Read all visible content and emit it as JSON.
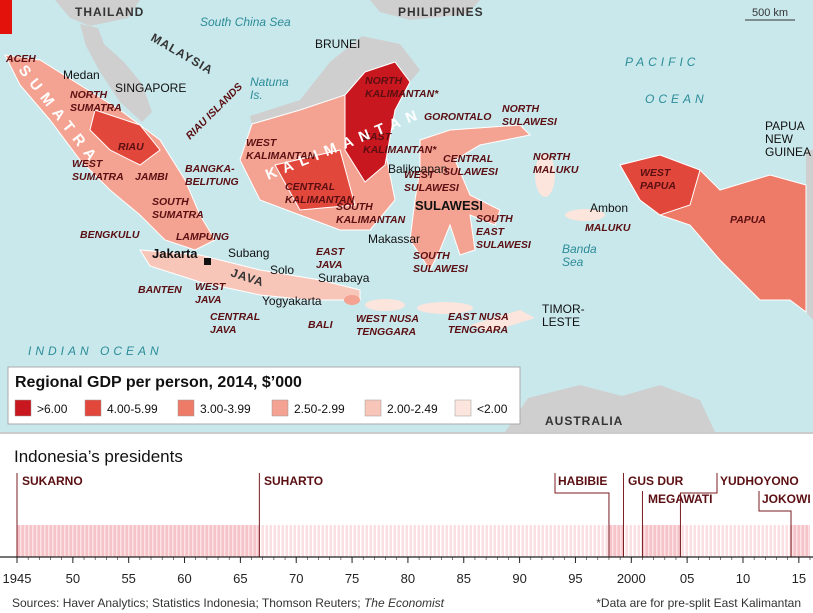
{
  "map": {
    "scale": "500 km",
    "labels": [
      {
        "lines": [
          "THAILAND"
        ]
      },
      {
        "lines": [
          "South China Sea"
        ]
      },
      {
        "lines": [
          "PHILIPPINES"
        ]
      },
      {
        "lines": [
          "ACEH"
        ]
      },
      {
        "lines": [
          "Medan"
        ]
      },
      {
        "lines": [
          "MALAYSIA"
        ]
      },
      {
        "lines": [
          "SINGAPORE"
        ]
      },
      {
        "lines": [
          "Natuna",
          "Is."
        ]
      },
      {
        "lines": [
          "BRUNEI"
        ]
      },
      {
        "lines": [
          "NORTH",
          "SUMATRA"
        ]
      },
      {
        "lines": [
          "RIAU ISLANDS"
        ]
      },
      {
        "lines": [
          "RIAU"
        ]
      },
      {
        "lines": [
          "NORTH",
          "KALIMANTAN*"
        ]
      },
      {
        "lines": [
          "GORONTALO"
        ]
      },
      {
        "lines": [
          "NORTH",
          "SULAWESI"
        ]
      },
      {
        "lines": [
          "PACIFIC"
        ]
      },
      {
        "lines": [
          "OCEAN"
        ]
      },
      {
        "lines": [
          "PAPUA",
          "NEW",
          "GUINEA"
        ]
      },
      {
        "lines": [
          "EAST",
          "KALIMANTAN*"
        ]
      },
      {
        "lines": [
          "WEST",
          "KALIMANTAN"
        ]
      },
      {
        "lines": [
          "KALIMANTAN"
        ]
      },
      {
        "lines": [
          "WEST",
          "SUMATRA"
        ]
      },
      {
        "lines": [
          "JAMBI"
        ]
      },
      {
        "lines": [
          "BANGKA-",
          "BELITUNG"
        ]
      },
      {
        "lines": [
          "CENTRAL",
          "KALIMANTAN"
        ]
      },
      {
        "lines": [
          "Balikpapan"
        ]
      },
      {
        "lines": [
          "WEST",
          "SULAWESI"
        ]
      },
      {
        "lines": [
          "CENTRAL",
          "SULAWESI"
        ]
      },
      {
        "lines": [
          "NORTH",
          "MALUKU"
        ]
      },
      {
        "lines": [
          "WEST",
          "PAPUA"
        ]
      },
      {
        "lines": [
          "SUMATRA"
        ]
      },
      {
        "lines": [
          "SOUTH",
          "SUMATRA"
        ]
      },
      {
        "lines": [
          "SOUTH",
          "KALIMANTAN"
        ]
      },
      {
        "lines": [
          "SULAWESI"
        ]
      },
      {
        "lines": [
          "Ambon"
        ]
      },
      {
        "lines": [
          "PAPUA"
        ]
      },
      {
        "lines": [
          "BENGKULU"
        ]
      },
      {
        "lines": [
          "LAMPUNG"
        ]
      },
      {
        "lines": [
          "SOUTH",
          "EAST",
          "SULAWESI"
        ]
      },
      {
        "lines": [
          "MALUKU"
        ]
      },
      {
        "lines": [
          "Makassar"
        ]
      },
      {
        "lines": [
          "Banda",
          "Sea"
        ]
      },
      {
        "lines": [
          "Jakarta"
        ]
      },
      {
        "lines": [
          "Subang"
        ]
      },
      {
        "lines": [
          "EAST",
          "JAVA"
        ]
      },
      {
        "lines": [
          "SOUTH",
          "SULAWESI"
        ]
      },
      {
        "lines": [
          "JAVA"
        ]
      },
      {
        "lines": [
          "Solo"
        ]
      },
      {
        "lines": [
          "Surabaya"
        ]
      },
      {
        "lines": [
          "BANTEN"
        ]
      },
      {
        "lines": [
          "WEST",
          "JAVA"
        ]
      },
      {
        "lines": [
          "Yogyakarta"
        ]
      },
      {
        "lines": [
          "TIMOR-",
          "LESTE"
        ]
      },
      {
        "lines": [
          "CENTRAL",
          "JAVA"
        ]
      },
      {
        "lines": [
          "BALI"
        ]
      },
      {
        "lines": [
          "WEST NUSA",
          "TENGGARA"
        ]
      },
      {
        "lines": [
          "EAST NUSA",
          "TENGGARA"
        ]
      },
      {
        "lines": [
          "INDIAN OCEAN"
        ]
      },
      {
        "lines": [
          "AUSTRALIA"
        ]
      }
    ]
  },
  "legend": {
    "title": "Regional GDP per person, 2014, $’000",
    "items": [
      {
        "label": ">6.00",
        "color": "#c8171e"
      },
      {
        "label": "4.00-5.99",
        "color": "#e2473b"
      },
      {
        "label": "3.00-3.99",
        "color": "#ee7a68"
      },
      {
        "label": "2.50-2.99",
        "color": "#f4a392"
      },
      {
        "label": "2.00-2.49",
        "color": "#f8c6b9"
      },
      {
        "label": "<2.00",
        "color": "#fce5dc"
      }
    ]
  },
  "timeline": {
    "title": "Indonesia’s presidents",
    "xlim": [
      1945,
      2016
    ],
    "xticks": [
      {
        "value": 1945,
        "label": "1945"
      },
      {
        "value": 1950,
        "label": "50"
      },
      {
        "value": 1955,
        "label": "55"
      },
      {
        "value": 1960,
        "label": "60"
      },
      {
        "value": 1965,
        "label": "65"
      },
      {
        "value": 1970,
        "label": "70"
      },
      {
        "value": 1975,
        "label": "75"
      },
      {
        "value": 1980,
        "label": "80"
      },
      {
        "value": 1985,
        "label": "85"
      },
      {
        "value": 1990,
        "label": "90"
      },
      {
        "value": 1995,
        "label": "95"
      },
      2000,
      {
        "value": 2005,
        "label": "05"
      },
      {
        "value": 2010,
        "label": "10"
      },
      {
        "value": 2015,
        "label": "15"
      }
    ],
    "presidents": [
      {
        "name": "SUKARNO",
        "start": 1945
      },
      {
        "name": "SUHARTO",
        "start": 1966.7
      },
      {
        "name": "HABIBIE",
        "start": 1998
      },
      {
        "name": "GUS DUR",
        "start": 1999.3
      },
      {
        "name": "MEGAWATI",
        "start": 2001
      },
      {
        "name": "YUDHOYONO",
        "start": 2004.4
      },
      {
        "name": "JOKOWI",
        "start": 2014.3
      }
    ]
  },
  "sources": "Sources: Haver Analytics; Statistics Indonesia; Thomson Reuters;",
  "sources_italic": "The Economist",
  "footnote": "*Data are for pre-split East Kalimantan"
}
